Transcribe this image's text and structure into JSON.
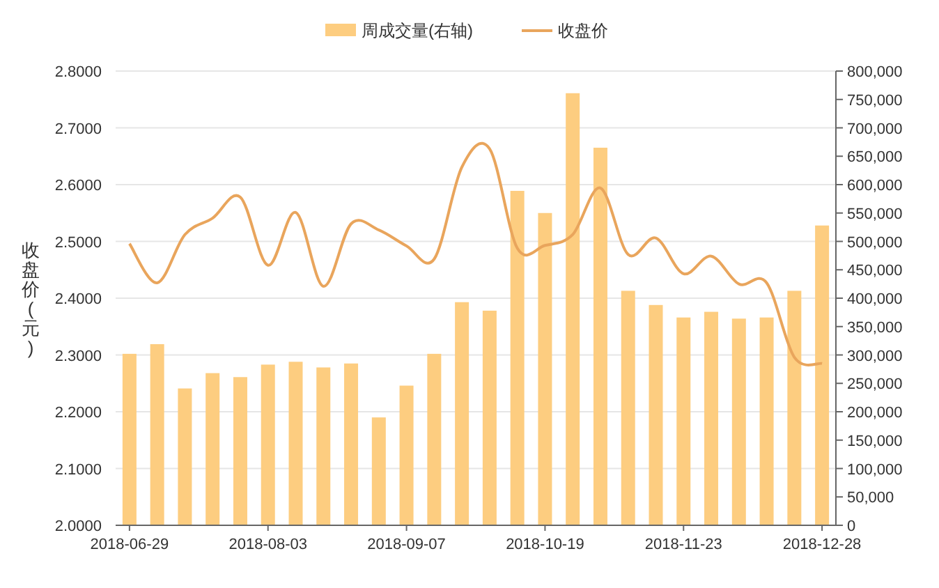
{
  "chart_data": {
    "type": "bar",
    "ylabel": "收盘价(元)",
    "legend": "top",
    "grid": "y",
    "categories": [
      "2018-06-29",
      null,
      null,
      null,
      null,
      "2018-08-03",
      null,
      null,
      null,
      null,
      "2018-09-07",
      null,
      null,
      null,
      null,
      "2018-10-19",
      null,
      null,
      null,
      null,
      "2018-11-23",
      null,
      null,
      null,
      null,
      "2018-12-28"
    ],
    "series": [
      {
        "name": "周成交量(右轴)",
        "axis": "y2",
        "color": "#fdcd80",
        "values": [
          302000,
          319000,
          241000,
          268000,
          261000,
          283000,
          288000,
          278000,
          285000,
          190000,
          246000,
          302000,
          393000,
          378000,
          589000,
          550000,
          761000,
          665000,
          413000,
          388000,
          366000,
          376000,
          364000,
          366000,
          413000,
          528000
        ]
      },
      {
        "name": "收盘价",
        "type": "line",
        "color": "#e9a55c",
        "values": [
          2.496,
          2.427,
          2.512,
          2.541,
          2.578,
          2.458,
          2.551,
          2.421,
          2.531,
          2.52,
          2.492,
          2.469,
          2.631,
          2.663,
          2.488,
          2.493,
          2.512,
          2.594,
          2.477,
          2.506,
          2.443,
          2.474,
          2.425,
          2.427,
          2.296,
          2.285
        ]
      }
    ],
    "ylim": [
      2.0,
      2.8
    ],
    "yticks": [
      {
        "value": 2.0,
        "label": "2.0000"
      },
      {
        "value": 2.1,
        "label": "2.1000"
      },
      {
        "value": 2.2,
        "label": "2.2000"
      },
      {
        "value": 2.3,
        "label": "2.3000"
      },
      {
        "value": 2.4,
        "label": "2.4000"
      },
      {
        "value": 2.5,
        "label": "2.5000"
      },
      {
        "value": 2.6,
        "label": "2.6000"
      },
      {
        "value": 2.7,
        "label": "2.7000"
      },
      {
        "value": 2.8,
        "label": "2.8000"
      }
    ],
    "y2lim": [
      0,
      800000
    ],
    "y2ticks": [
      0,
      {
        "value": 50000,
        "label": "50,000"
      },
      {
        "value": 100000,
        "label": "100,000"
      },
      {
        "value": 150000,
        "label": "150,000"
      },
      {
        "value": 200000,
        "label": "200,000"
      },
      {
        "value": 250000,
        "label": "250,000"
      },
      {
        "value": 300000,
        "label": "300,000"
      },
      {
        "value": 350000,
        "label": "350,000"
      },
      {
        "value": 400000,
        "label": "400,000"
      },
      {
        "value": 450000,
        "label": "450,000"
      },
      {
        "value": 500000,
        "label": "500,000"
      },
      {
        "value": 550000,
        "label": "550,000"
      },
      {
        "value": 600000,
        "label": "600,000"
      },
      {
        "value": 650000,
        "label": "650,000"
      },
      {
        "value": 700000,
        "label": "700,000"
      },
      {
        "value": 750000,
        "label": "750,000"
      },
      {
        "value": 800000,
        "label": "800,000"
      }
    ]
  }
}
